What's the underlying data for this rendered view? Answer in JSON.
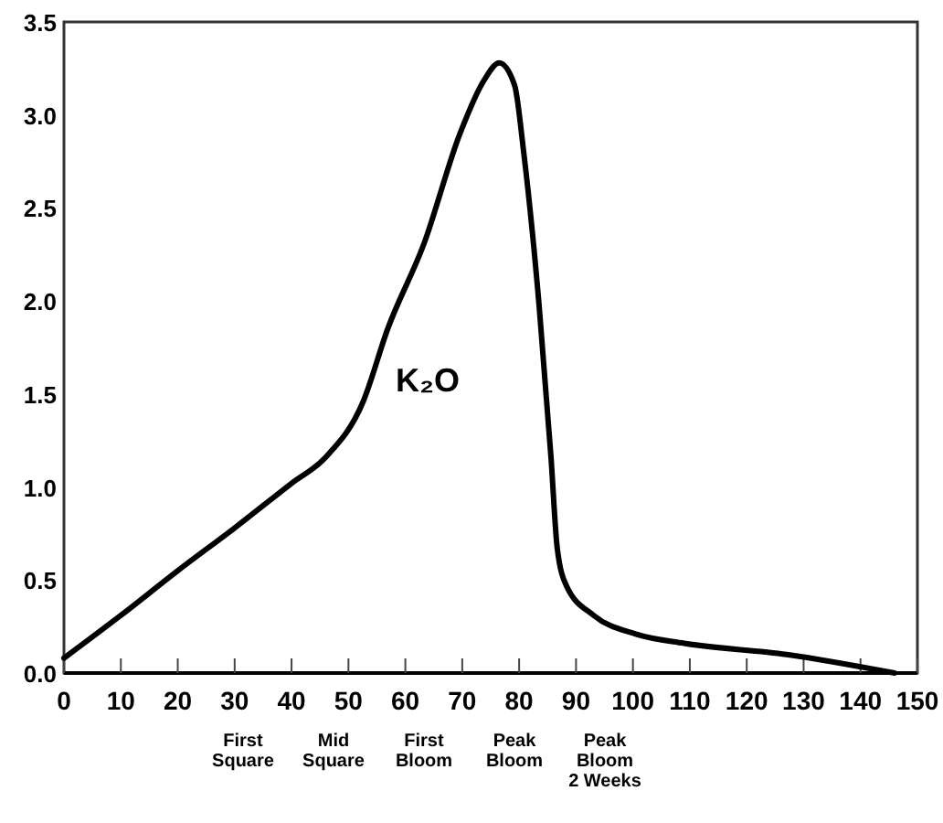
{
  "chart_data": {
    "type": "line",
    "xlim": [
      0,
      150
    ],
    "xticks": [
      0,
      10,
      20,
      30,
      40,
      50,
      60,
      70,
      80,
      90,
      100,
      110,
      120,
      130,
      140,
      150
    ],
    "ylim": [
      0,
      3.5
    ],
    "yticks": [
      {
        "value": 0,
        "label": "0.0"
      },
      {
        "value": 0.5,
        "label": "0.5"
      },
      {
        "value": 1,
        "label": "1.0"
      },
      {
        "value": 1.5,
        "label": "1.5"
      },
      {
        "value": 2,
        "label": "2.0"
      },
      {
        "value": 2.5,
        "label": "2.5"
      },
      {
        "value": 3,
        "label": "3.0"
      },
      {
        "value": 3.5,
        "label": "3.5"
      }
    ],
    "grid": false,
    "marker": "none",
    "line_style": "solid",
    "series": [
      {
        "color": "#000000",
        "x": [
          0,
          10,
          20,
          30,
          40,
          46,
          52.6,
          56.9,
          63.3,
          69.6,
          73.9,
          76.5,
          79.2,
          80.8,
          83.5,
          85.6,
          86.7,
          88.3,
          93.1,
          100.5,
          109,
          127,
          146
        ],
        "values": [
          0.08,
          0.31,
          0.55,
          0.78,
          1.02,
          1.16,
          1.46,
          1.85,
          2.31,
          2.9,
          3.19,
          3.28,
          3.16,
          2.8,
          1.98,
          1.16,
          0.67,
          0.47,
          0.31,
          0.21,
          0.16,
          0.1,
          0
        ]
      }
    ],
    "annotations": [
      "K₂O",
      "First\nSquare",
      "Mid\nSquare",
      "First\nBloom",
      "Peak\nBloom",
      "Peak\nBloom\n2 Weeks"
    ]
  }
}
